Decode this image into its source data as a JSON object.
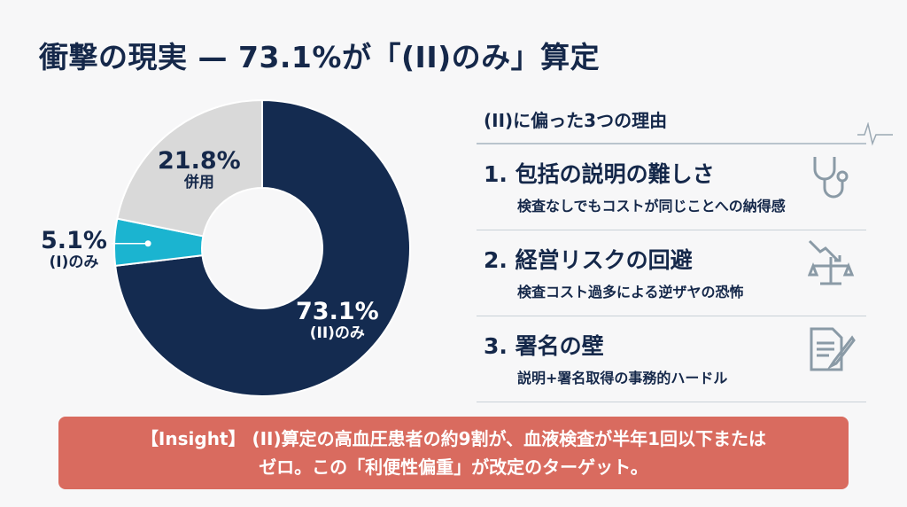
{
  "title": "衝撃の現実 — 73.1%が「(II)のみ」算定",
  "chart_data": {
    "type": "pie",
    "variant": "donut",
    "start": "top",
    "direction": "clockwise",
    "slices": [
      {
        "label": "(II)のみ",
        "value": 73.1,
        "value_text": "73.1%",
        "color": "#142b50"
      },
      {
        "label": "(I)のみ",
        "value": 5.1,
        "value_text": "5.1%",
        "color": "#1bb4d0"
      },
      {
        "label": "併用",
        "value": 21.8,
        "value_text": "21.8%",
        "color": "#d9d9d9"
      }
    ]
  },
  "reasons": {
    "heading": "(II)に偏った3つの理由",
    "items": [
      {
        "title": "1. 包括の説明の難しさ",
        "sub": "検査なしでもコストが同じことへの納得感",
        "icon": "stethoscope-icon"
      },
      {
        "title": "2. 経営リスクの回避",
        "sub": "検査コスト過多による逆ザヤの恐怖",
        "icon": "scale-down-arrow-icon"
      },
      {
        "title": "3. 署名の壁",
        "sub": "説明+署名取得の事務的ハードル",
        "icon": "document-pen-icon"
      }
    ]
  },
  "insight": {
    "line1": "【Insight】 (II)算定の高血圧患者の約9割が、血液検査が半年1回以下または",
    "line2": "ゼロ。この「利便性偏重」が改定のターゲット。"
  }
}
